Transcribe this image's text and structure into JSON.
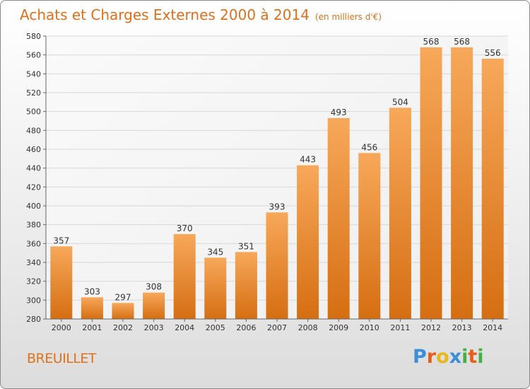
{
  "chart_data": {
    "type": "bar",
    "title": "Achats et Charges Externes 2000 à 2014",
    "subtitle": "(en milliers d'€)",
    "xlabel": "",
    "ylabel": "",
    "categories": [
      "2000",
      "2001",
      "2002",
      "2003",
      "2004",
      "2005",
      "2006",
      "2007",
      "2008",
      "2009",
      "2010",
      "2011",
      "2012",
      "2013",
      "2014"
    ],
    "values": [
      357,
      303,
      297,
      308,
      370,
      345,
      351,
      393,
      443,
      493,
      456,
      504,
      568,
      568,
      556
    ],
    "ylim": [
      280,
      580
    ],
    "yticks": [
      280,
      300,
      320,
      340,
      360,
      380,
      400,
      420,
      440,
      460,
      480,
      500,
      520,
      540,
      560,
      580
    ],
    "grid": true,
    "bar_color": "#f08a2c"
  },
  "footer": {
    "commune": "BREUILLET",
    "logo_text": "Proxiti",
    "logo_colors": [
      "#3b8fd6",
      "#e85d1a",
      "#e8b81a",
      "#3b8fd6",
      "#45b045",
      "#e85d1a",
      "#45b045"
    ]
  }
}
